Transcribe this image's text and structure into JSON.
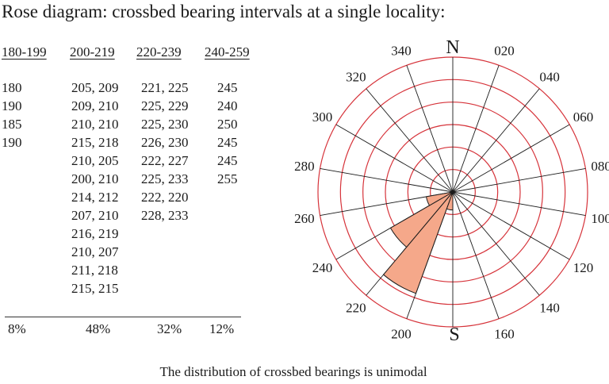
{
  "title": "Rose diagram: crossbed bearing intervals at a single locality:",
  "caption": "The distribution of crossbed bearings is unimodal",
  "table": {
    "columns": [
      {
        "header": "180-199",
        "values": [
          "180",
          "190",
          "185",
          "190"
        ],
        "percent": "8%"
      },
      {
        "header": "200-219",
        "values": [
          "205, 209",
          "209, 210",
          "210, 210",
          "215, 218",
          "210, 205",
          "200, 210",
          "214, 212",
          "207, 210",
          "216, 219",
          "210, 207",
          "211, 218",
          "215, 215"
        ],
        "percent": "48%"
      },
      {
        "header": "220-239",
        "values": [
          "221, 225",
          "225, 229",
          "225, 230",
          "226, 230",
          "222, 227",
          "225, 233",
          "222, 220",
          "228, 233"
        ],
        "percent": "32%"
      },
      {
        "header": "240-259",
        "values": [
          "245",
          "240",
          "250",
          "245",
          "245",
          "255"
        ],
        "percent": "12%"
      }
    ]
  },
  "rose": {
    "north_label": "N",
    "south_label": "S",
    "bearing_labels": [
      {
        "bearing": 20,
        "text": "020"
      },
      {
        "bearing": 40,
        "text": "040"
      },
      {
        "bearing": 60,
        "text": "060"
      },
      {
        "bearing": 80,
        "text": "080"
      },
      {
        "bearing": 100,
        "text": "100"
      },
      {
        "bearing": 120,
        "text": "120"
      },
      {
        "bearing": 140,
        "text": "140"
      },
      {
        "bearing": 160,
        "text": "160"
      },
      {
        "bearing": 200,
        "text": "200"
      },
      {
        "bearing": 220,
        "text": "220"
      },
      {
        "bearing": 240,
        "text": "240"
      },
      {
        "bearing": 260,
        "text": "260"
      },
      {
        "bearing": 280,
        "text": "280"
      },
      {
        "bearing": 300,
        "text": "300"
      },
      {
        "bearing": 320,
        "text": "320"
      },
      {
        "bearing": 340,
        "text": "340"
      }
    ],
    "spoke_interval_deg": 20,
    "ring_count": 6,
    "ring_max_percent": 60,
    "petals": [
      {
        "from": 180,
        "to": 200,
        "percent": 8
      },
      {
        "from": 200,
        "to": 220,
        "percent": 48
      },
      {
        "from": 220,
        "to": 240,
        "percent": 32
      },
      {
        "from": 240,
        "to": 260,
        "percent": 12
      }
    ],
    "colors": {
      "ring": "#d6333a",
      "spoke": "#1a1a1a",
      "petal_fill": "#f5a88a",
      "petal_stroke": "#1a1a1a"
    }
  }
}
